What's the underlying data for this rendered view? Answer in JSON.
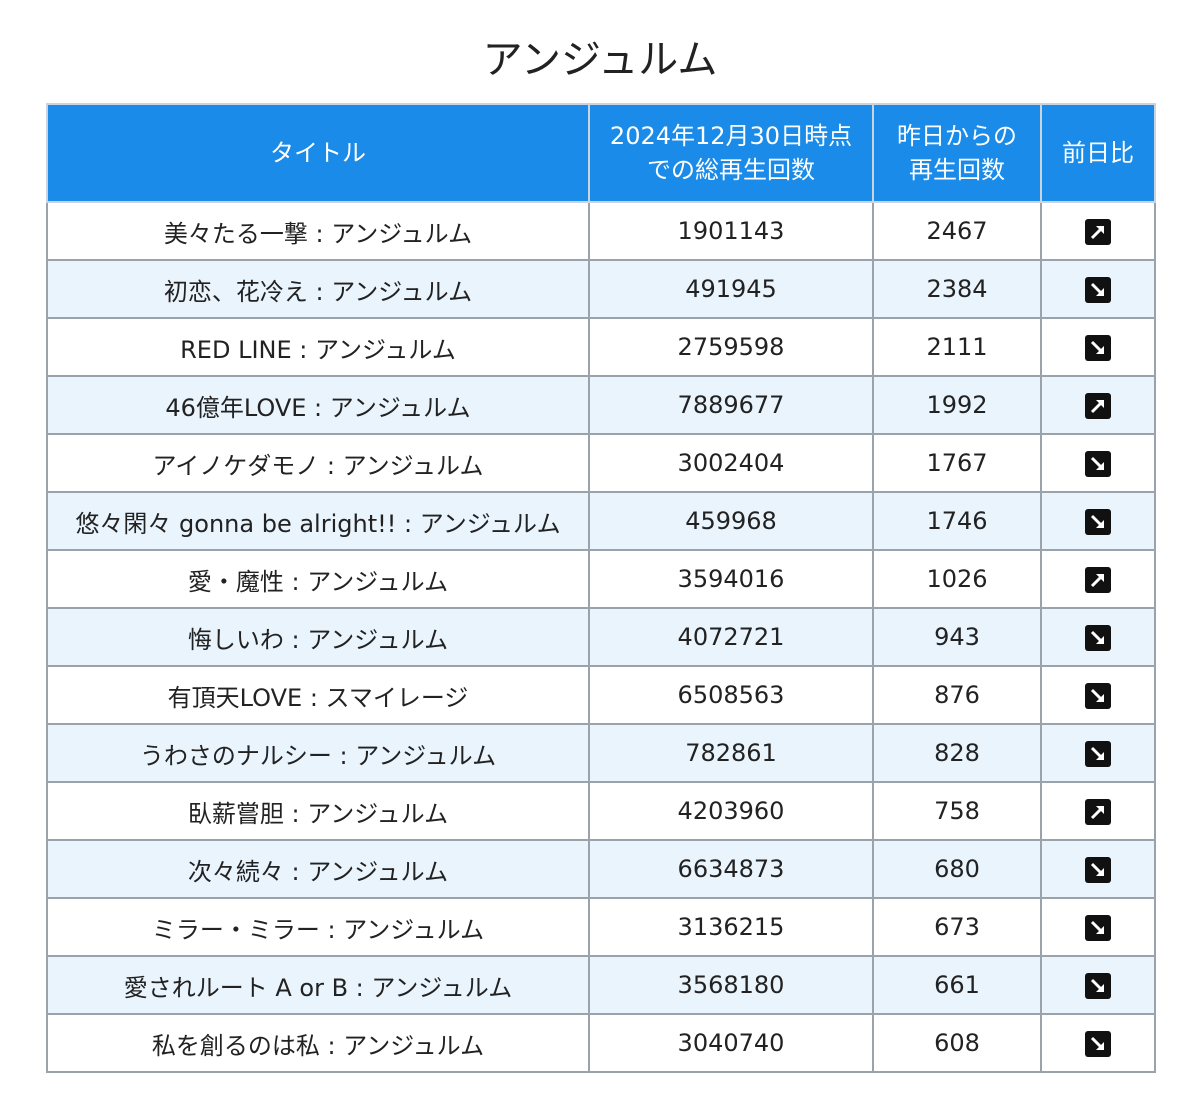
{
  "title": "アンジュルム",
  "headers": {
    "title_col": "タイトル",
    "total_line1": "2024年12月30日時点",
    "total_line2": "での総再生回数",
    "daily_line1": "昨日からの",
    "daily_line2": "再生回数",
    "change": "前日比"
  },
  "rows": [
    {
      "title": "美々たる一撃 : アンジュルム",
      "total": "1901143",
      "daily": "2467",
      "trend": "up"
    },
    {
      "title": "初恋、花冷え : アンジュルム",
      "total": "491945",
      "daily": "2384",
      "trend": "down"
    },
    {
      "title": "RED LINE : アンジュルム",
      "total": "2759598",
      "daily": "2111",
      "trend": "down"
    },
    {
      "title": "46億年LOVE : アンジュルム",
      "total": "7889677",
      "daily": "1992",
      "trend": "up"
    },
    {
      "title": "アイノケダモノ : アンジュルム",
      "total": "3002404",
      "daily": "1767",
      "trend": "down"
    },
    {
      "title": "悠々閑々 gonna be alright!! : アンジュルム",
      "total": "459968",
      "daily": "1746",
      "trend": "down"
    },
    {
      "title": "愛・魔性 : アンジュルム",
      "total": "3594016",
      "daily": "1026",
      "trend": "up"
    },
    {
      "title": "悔しいわ : アンジュルム",
      "total": "4072721",
      "daily": "943",
      "trend": "down"
    },
    {
      "title": "有頂天LOVE : スマイレージ",
      "total": "6508563",
      "daily": "876",
      "trend": "down"
    },
    {
      "title": "うわさのナルシー : アンジュルム",
      "total": "782861",
      "daily": "828",
      "trend": "down"
    },
    {
      "title": "臥薪嘗胆 : アンジュルム",
      "total": "4203960",
      "daily": "758",
      "trend": "up"
    },
    {
      "title": "次々続々 : アンジュルム",
      "total": "6634873",
      "daily": "680",
      "trend": "down"
    },
    {
      "title": "ミラー・ミラー : アンジュルム",
      "total": "3136215",
      "daily": "673",
      "trend": "down"
    },
    {
      "title": "愛されルート A or B : アンジュルム",
      "total": "3568180",
      "daily": "661",
      "trend": "down"
    },
    {
      "title": "私を創るのは私 : アンジュルム",
      "total": "3040740",
      "daily": "608",
      "trend": "down"
    }
  ]
}
